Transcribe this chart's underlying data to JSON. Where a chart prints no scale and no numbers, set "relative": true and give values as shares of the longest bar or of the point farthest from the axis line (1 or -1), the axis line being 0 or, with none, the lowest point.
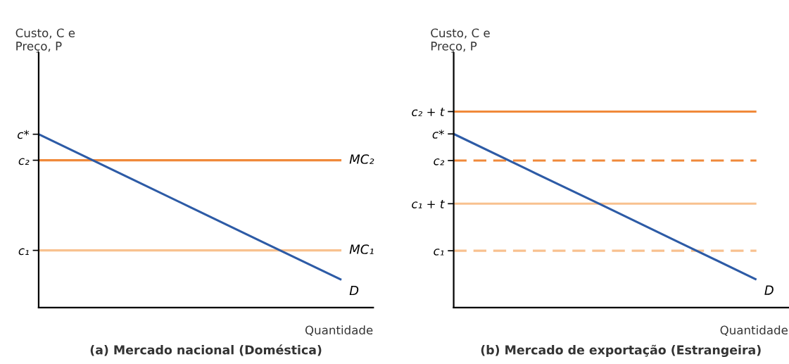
{
  "chart_data": [
    {
      "type": "line",
      "title": "(a) Mercado nacional (Doméstica)",
      "ylabel": "Custo, C e\nPreço, P",
      "xlabel": "Quantidade",
      "relative": true,
      "grid": false,
      "categories": [
        null,
        null,
        null,
        null,
        null
      ],
      "series": [
        {
          "name": "MC₂",
          "color": "#f0893a",
          "line_style": "solid",
          "values": [
            0.85,
            0.85,
            0.85,
            0.85,
            0.85
          ]
        },
        {
          "name": "MC₁",
          "color": "#f8c18f",
          "line_style": "solid",
          "values": [
            0.33,
            0.33,
            0.33,
            0.33,
            0.33
          ]
        },
        {
          "name": "D",
          "color": "#2d5ba6",
          "line_style": "solid",
          "values": [
            1,
            0.79,
            0.58,
            0.37,
            0.16
          ]
        }
      ],
      "annotations": [
        "c*",
        "c₂",
        "c₁"
      ]
    },
    {
      "type": "line",
      "title": "(b) Mercado de exportação (Estrangeira)",
      "ylabel": "Custo, C e\nPreço, P",
      "xlabel": "Quantidade",
      "relative": true,
      "grid": false,
      "categories": [
        null,
        null,
        null,
        null,
        null
      ],
      "series": [
        {
          "color": "#f0893a",
          "line_style": "solid",
          "values": [
            1,
            1,
            1,
            1,
            1
          ]
        },
        {
          "color": "#f0893a",
          "line_style": "dashed",
          "values": [
            0.75,
            0.75,
            0.75,
            0.75,
            0.75
          ]
        },
        {
          "color": "#f8c18f",
          "line_style": "solid",
          "values": [
            0.53,
            0.53,
            0.53,
            0.53,
            0.53
          ]
        },
        {
          "color": "#f8c18f",
          "line_style": "dashed",
          "values": [
            0.29,
            0.29,
            0.29,
            0.29,
            0.29
          ]
        },
        {
          "name": "D",
          "color": "#2d5ba6",
          "line_style": "solid",
          "values": [
            0.886,
            0.7,
            0.515,
            0.329,
            0.143
          ]
        }
      ],
      "annotations": [
        "c₂ + t",
        "c*",
        "c₂",
        "c₁ + t",
        "c₁"
      ]
    }
  ]
}
